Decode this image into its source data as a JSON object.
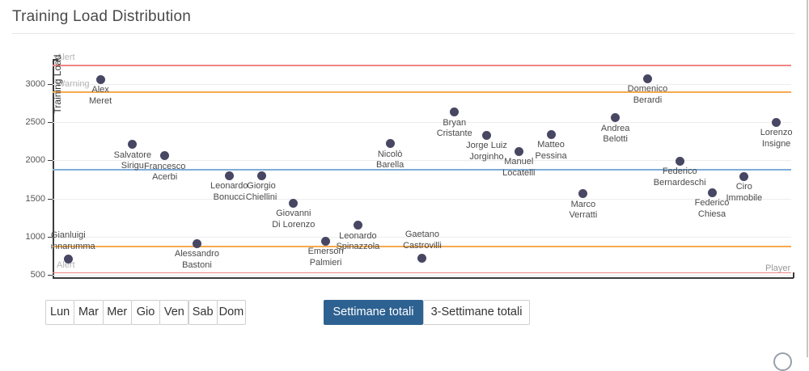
{
  "page": {
    "title": "Training Load Distribution"
  },
  "chart_data": {
    "type": "scatter",
    "title": "Training Load Distribution",
    "xlabel": "Player",
    "ylabel": "Training Load",
    "y_ticks": [
      3000,
      2500,
      2000,
      1500,
      1000,
      500
    ],
    "ylim": [
      450,
      3350
    ],
    "grid": true,
    "point_color": "#474763",
    "thresholds": [
      {
        "name": "alert-high",
        "label": "Alert",
        "value": 3250,
        "color": "#ee8585",
        "thickness": 1.5
      },
      {
        "name": "warning-high",
        "label": "Warning",
        "value": 2900,
        "color": "#f6a94e",
        "thickness": 1.5
      },
      {
        "name": "mean",
        "label": "",
        "value": 1890,
        "color": "#7fadd8",
        "thickness": 2
      },
      {
        "name": "warning-low",
        "label": "",
        "value": 880,
        "color": "#f6a94e",
        "thickness": 1.5
      },
      {
        "name": "alert-low",
        "label": "Alert",
        "value": 535,
        "color": "#ee8585",
        "thickness": 1.5
      }
    ],
    "points": [
      {
        "name": "Gianluigi Donnarumma",
        "label_lines": [
          "Gianluigi",
          "Donnarumma"
        ],
        "load": 710,
        "label_position": "above"
      },
      {
        "name": "Alex Meret",
        "label_lines": [
          "Alex",
          "Meret"
        ],
        "load": 3060,
        "label_position": "below"
      },
      {
        "name": "Salvatore Sirigu",
        "label_lines": [
          "Salvatore",
          "Sirigu"
        ],
        "load": 2210,
        "label_position": "below"
      },
      {
        "name": "Francesco Acerbi",
        "label_lines": [
          "Francesco",
          "Acerbi"
        ],
        "load": 2060,
        "label_position": "below"
      },
      {
        "name": "Alessandro Bastoni",
        "label_lines": [
          "Alessandro",
          "Bastoni"
        ],
        "load": 910,
        "label_position": "below"
      },
      {
        "name": "Leonardo Bonucci",
        "label_lines": [
          "Leonardo",
          "Bonucci"
        ],
        "load": 1800,
        "label_position": "below"
      },
      {
        "name": "Giorgio Chiellini",
        "label_lines": [
          "Giorgio",
          "Chiellini"
        ],
        "load": 1800,
        "label_position": "below"
      },
      {
        "name": "Giovanni Di Lorenzo",
        "label_lines": [
          "Giovanni",
          "Di Lorenzo"
        ],
        "load": 1440,
        "label_position": "below"
      },
      {
        "name": "Emerson Palmieri",
        "label_lines": [
          "Emerson",
          "Palmieri"
        ],
        "load": 940,
        "label_position": "below"
      },
      {
        "name": "Leonardo Spinazzola",
        "label_lines": [
          "Leonardo",
          "Spinazzola"
        ],
        "load": 1150,
        "label_position": "below"
      },
      {
        "name": "Nicolò Barella",
        "label_lines": [
          "Nicolò",
          "Barella"
        ],
        "load": 2220,
        "label_position": "below"
      },
      {
        "name": "Gaetano Castrovilli",
        "label_lines": [
          "Gaetano",
          "Castrovilli"
        ],
        "load": 720,
        "label_position": "above"
      },
      {
        "name": "Bryan Cristante",
        "label_lines": [
          "Bryan",
          "Cristante"
        ],
        "load": 2630,
        "label_position": "below"
      },
      {
        "name": "Jorge Luiz Jorginho",
        "label_lines": [
          "Jorge Luiz",
          "Jorginho"
        ],
        "load": 2330,
        "label_position": "below"
      },
      {
        "name": "Manuel Locatelli",
        "label_lines": [
          "Manuel",
          "Locatelli"
        ],
        "load": 2120,
        "label_position": "below"
      },
      {
        "name": "Matteo Pessina",
        "label_lines": [
          "Matteo",
          "Pessina"
        ],
        "load": 2340,
        "label_position": "below"
      },
      {
        "name": "Marco Verratti",
        "label_lines": [
          "Marco",
          "Verratti"
        ],
        "load": 1560,
        "label_position": "below"
      },
      {
        "name": "Andrea Belotti",
        "label_lines": [
          "Andrea",
          "Belotti"
        ],
        "load": 2560,
        "label_position": "below"
      },
      {
        "name": "Domenico Berardi",
        "label_lines": [
          "Domenico",
          "Berardi"
        ],
        "load": 3070,
        "label_position": "below"
      },
      {
        "name": "Federico Bernardeschi",
        "label_lines": [
          "Federico",
          "Bernardeschi"
        ],
        "load": 1990,
        "label_position": "below"
      },
      {
        "name": "Federico Chiesa",
        "label_lines": [
          "Federico",
          "Chiesa"
        ],
        "load": 1580,
        "label_position": "below"
      },
      {
        "name": "Ciro Immobile",
        "label_lines": [
          "Ciro",
          "Immobile"
        ],
        "load": 1790,
        "label_position": "below"
      },
      {
        "name": "Lorenzo Insigne",
        "label_lines": [
          "Lorenzo",
          "Insigne"
        ],
        "load": 2500,
        "label_position": "below"
      }
    ]
  },
  "toolbar": {
    "day_buttons": [
      "Lun",
      "Mar",
      "Mer",
      "Gio",
      "Ven",
      "Sab",
      "Dom"
    ],
    "week_buttons": [
      {
        "label": "Settimane totali",
        "active": true
      },
      {
        "label": "3-Settimane totali",
        "active": false
      }
    ],
    "active_bg": "#2d6191"
  }
}
